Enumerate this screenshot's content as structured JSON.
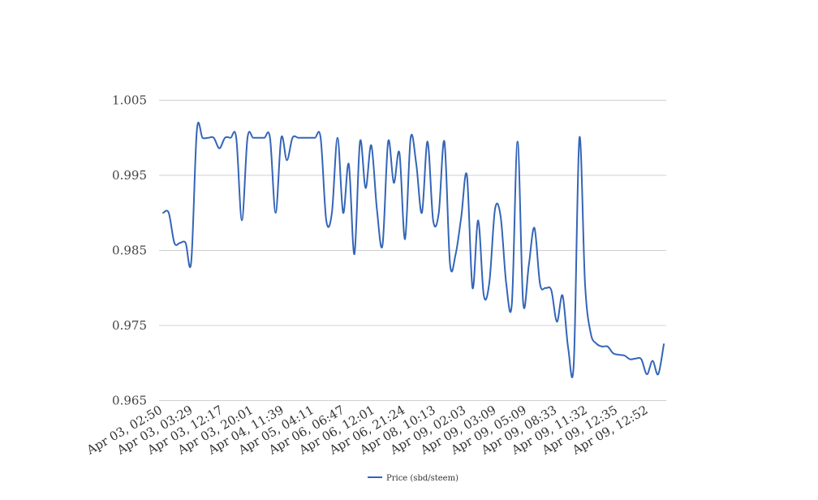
{
  "chart_data": {
    "type": "line",
    "title": "",
    "xlabel": "",
    "ylabel": "",
    "ylim": [
      0.965,
      1.005
    ],
    "yticks": [
      "1.005",
      "0.995",
      "0.985",
      "0.975",
      "0.965"
    ],
    "ytick_values": [
      1.005,
      0.995,
      0.985,
      0.975,
      0.965
    ],
    "xtick_labels": [
      "Apr 03, 02:50",
      "Apr 03, 03:29",
      "Apr 03, 12:17",
      "Apr 03, 20:01",
      "Apr 04, 11:39",
      "Apr 05, 04:11",
      "Apr 06, 06:47",
      "Apr 06, 12:01",
      "Apr 06, 21:24",
      "Apr 08, 10:13",
      "Apr 09, 02:03",
      "Apr 09, 03:09",
      "Apr 09, 05:09",
      "Apr 09, 08:33",
      "Apr 09, 11:32",
      "Apr 09, 12:35",
      "Apr 09, 12:52"
    ],
    "grid": true,
    "legend_position": "bottom",
    "series": [
      {
        "name": "Price (sbd/steem)",
        "color": "#3465b8",
        "values": [
          0.99,
          0.99,
          0.986,
          0.986,
          0.986,
          0.9835,
          1.001,
          1.0,
          1.0,
          1.0,
          0.9986,
          1.0,
          1.0,
          1.0,
          0.989,
          1.0,
          1.0,
          1.0,
          1.0,
          1.0,
          0.99,
          1.0,
          0.997,
          1.0,
          1.0,
          1.0,
          1.0,
          1.0,
          1.0,
          0.989,
          0.99,
          1.0,
          0.99,
          0.9965,
          0.9845,
          0.9995,
          0.9933,
          0.999,
          0.9905,
          0.9857,
          0.9995,
          0.994,
          0.998,
          0.9865,
          1.0,
          0.9965,
          0.99,
          0.9995,
          0.989,
          0.99,
          0.9995,
          0.9832,
          0.9845,
          0.9895,
          0.995,
          0.98,
          0.989,
          0.979,
          0.9808,
          0.9905,
          0.9895,
          0.9805,
          0.978,
          0.9995,
          0.978,
          0.983,
          0.988,
          0.9805,
          0.98,
          0.9797,
          0.9755,
          0.979,
          0.972,
          0.97,
          1.0,
          0.9805,
          0.974,
          0.9726,
          0.9722,
          0.9722,
          0.9713,
          0.9711,
          0.971,
          0.9705,
          0.9706,
          0.9705,
          0.9685,
          0.9703,
          0.9685,
          0.9725
        ]
      }
    ]
  }
}
